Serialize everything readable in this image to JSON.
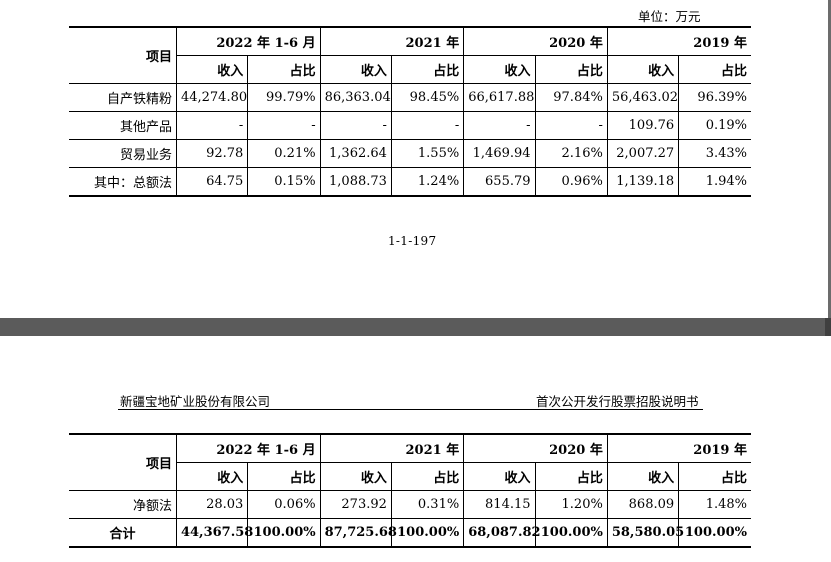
{
  "page1": {
    "unit": "单位：万元",
    "page_number": "1-1-197",
    "table": {
      "item_header": "项目",
      "years": [
        "2022 年 1-6 月",
        "2021 年",
        "2020 年",
        "2019 年"
      ],
      "sub_headers": [
        "收入",
        "占比",
        "收入",
        "占比",
        "收入",
        "占比",
        "收入",
        "占比"
      ],
      "rows": [
        {
          "label": "自产铁精粉",
          "cells": [
            "44,274.80",
            "99.79%",
            "86,363.04",
            "98.45%",
            "66,617.88",
            "97.84%",
            "56,463.02",
            "96.39%"
          ]
        },
        {
          "label": "其他产品",
          "cells": [
            "-",
            "-",
            "-",
            "-",
            "-",
            "-",
            "109.76",
            "0.19%"
          ]
        },
        {
          "label": "贸易业务",
          "cells": [
            "92.78",
            "0.21%",
            "1,362.64",
            "1.55%",
            "1,469.94",
            "2.16%",
            "2,007.27",
            "3.43%"
          ]
        },
        {
          "label": "其中：总额法",
          "cells": [
            "64.75",
            "0.15%",
            "1,088.73",
            "1.24%",
            "655.79",
            "0.96%",
            "1,139.18",
            "1.94%"
          ]
        }
      ]
    }
  },
  "page2": {
    "header_left": "新疆宝地矿业股份有限公司",
    "header_right": "首次公开发行股票招股说明书",
    "table": {
      "item_header": "项目",
      "years": [
        "2022 年 1-6 月",
        "2021 年",
        "2020 年",
        "2019 年"
      ],
      "sub_headers": [
        "收入",
        "占比",
        "收入",
        "占比",
        "收入",
        "占比",
        "收入",
        "占比"
      ],
      "rows": [
        {
          "label": "净额法",
          "cells": [
            "28.03",
            "0.06%",
            "273.92",
            "0.31%",
            "814.15",
            "1.20%",
            "868.09",
            "1.48%"
          ]
        },
        {
          "label": "合计",
          "cells": [
            "44,367.58",
            "100.00%",
            "87,725.68",
            "100.00%",
            "68,087.82",
            "100.00%",
            "58,580.05",
            "100.00%"
          ]
        }
      ]
    }
  }
}
